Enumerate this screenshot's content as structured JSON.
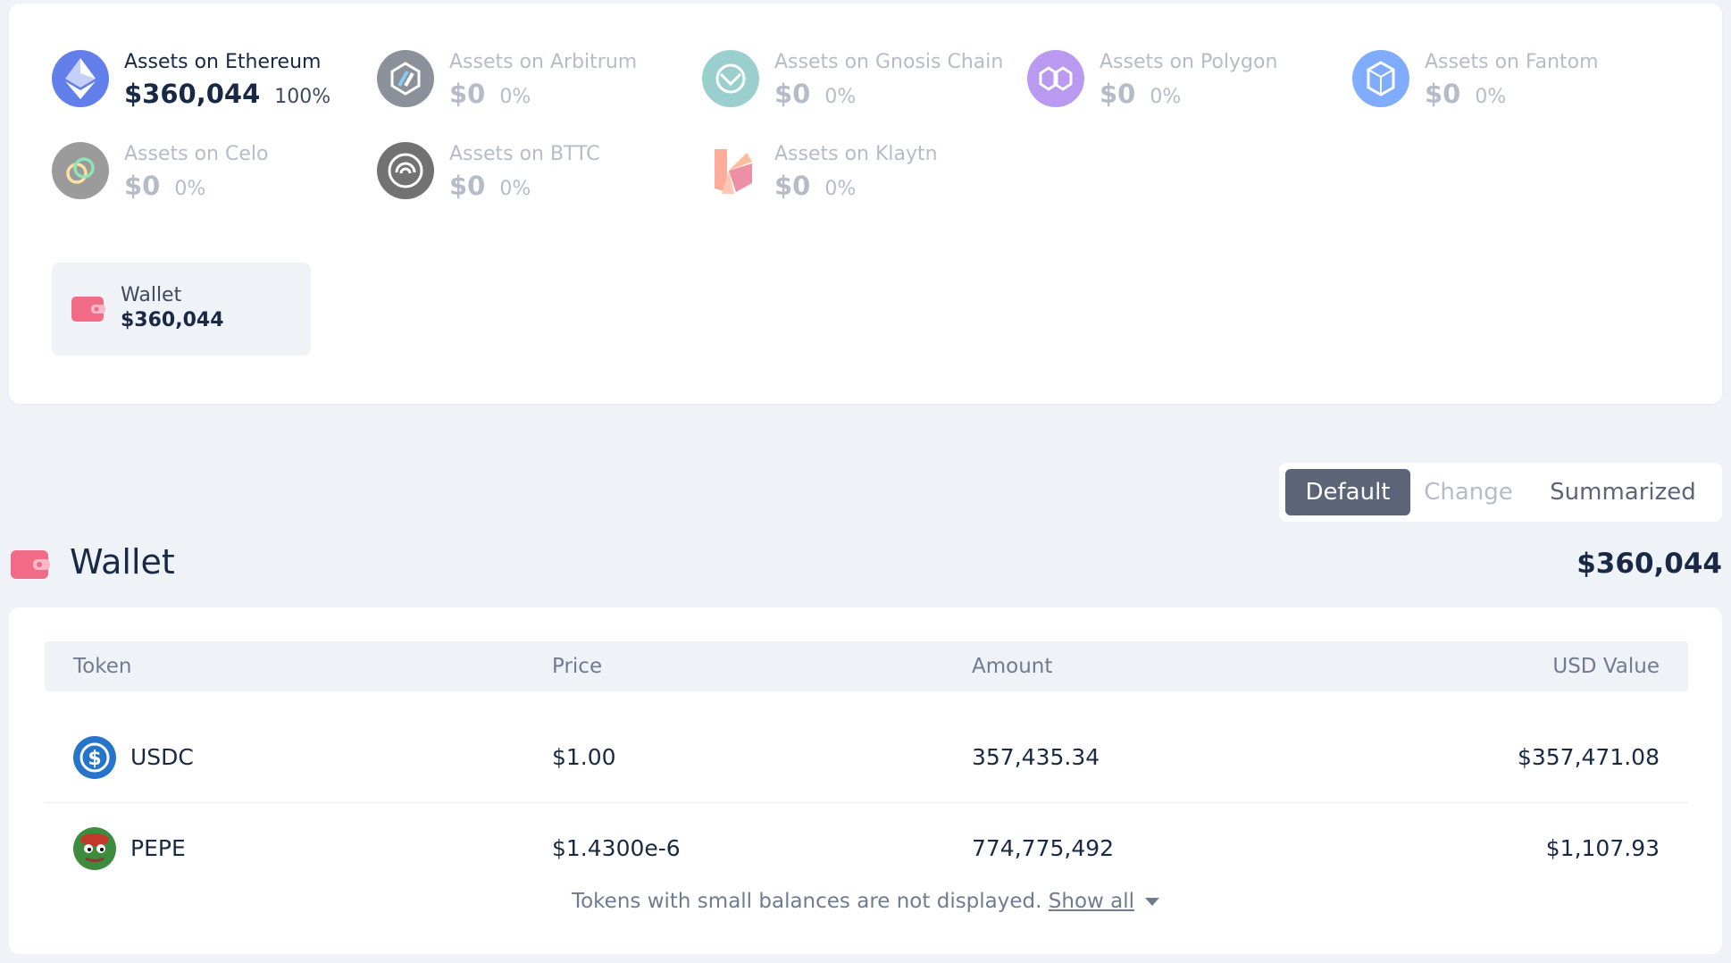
{
  "chains": [
    {
      "name": "Assets on Ethereum",
      "value": "$360,044",
      "pct": "100%",
      "icon": "ethereum-icon",
      "color": "#627eea",
      "active": true
    },
    {
      "name": "Assets on Arbitrum",
      "value": "$0",
      "pct": "0%",
      "icon": "arbitrum-icon",
      "color": "#2d374b",
      "active": false
    },
    {
      "name": "Assets on Gnosis Chain",
      "value": "$0",
      "pct": "0%",
      "icon": "gnosis-icon",
      "color": "#48a9a6",
      "active": false
    },
    {
      "name": "Assets on Polygon",
      "value": "$0",
      "pct": "0%",
      "icon": "polygon-icon",
      "color": "#8247e5",
      "active": false
    },
    {
      "name": "Assets on Fantom",
      "value": "$0",
      "pct": "0%",
      "icon": "fantom-icon",
      "color": "#1969ff",
      "active": false
    },
    {
      "name": "Assets on Celo",
      "value": "$0",
      "pct": "0%",
      "icon": "celo-icon",
      "color": "#35d07f",
      "active": false
    },
    {
      "name": "Assets on BTTC",
      "value": "$0",
      "pct": "0%",
      "icon": "bttc-icon",
      "color": "#000000",
      "active": false
    },
    {
      "name": "Assets on Klaytn",
      "value": "$0",
      "pct": "0%",
      "icon": "klaytn-icon",
      "color": "#ff6b4a",
      "active": false
    }
  ],
  "wallet_chip": {
    "label": "Wallet",
    "value": "$360,044",
    "icon": "wallet-icon"
  },
  "view_switch": {
    "default": "Default",
    "change": "Change",
    "summarized": "Summarized",
    "selected": "Default"
  },
  "wallet_section": {
    "title": "Wallet",
    "total": "$360,044",
    "icon": "wallet-icon"
  },
  "table": {
    "headers": {
      "token": "Token",
      "price": "Price",
      "amount": "Amount",
      "usd_value": "USD Value"
    },
    "rows": [
      {
        "token": "USDC",
        "price": "$1.00",
        "amount": "357,435.34",
        "usd_value": "$357,471.08",
        "icon": "usdc-icon"
      },
      {
        "token": "PEPE",
        "price": "$1.4300e-6",
        "amount": "774,775,492",
        "usd_value": "$1,107.93",
        "icon": "pepe-icon"
      }
    ]
  },
  "footer": {
    "note": "Tokens with small balances are not displayed.",
    "show_all": "Show all"
  },
  "colors": {
    "page_bg": "#eff2f7",
    "selected_tab": "#5c6478",
    "wallet_pink": "#f26b86"
  }
}
